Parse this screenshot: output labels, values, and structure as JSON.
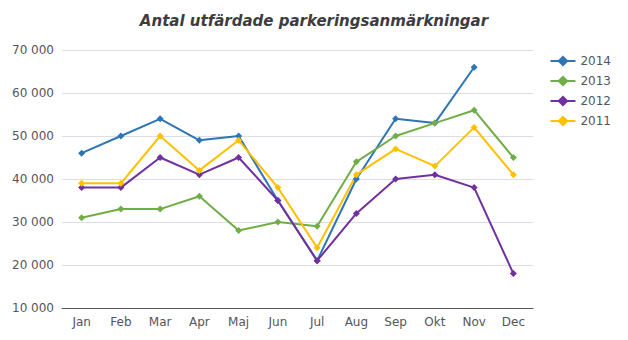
{
  "chart_data": {
    "type": "line",
    "title": "Antal utfärdade parkeringsanmärkningar",
    "categories": [
      "Jan",
      "Feb",
      "Mar",
      "Apr",
      "Maj",
      "Jun",
      "Jul",
      "Aug",
      "Sep",
      "Okt",
      "Nov",
      "Dec"
    ],
    "series": [
      {
        "name": "2014",
        "color": "#2E75B6",
        "values": [
          46000,
          50000,
          54000,
          49000,
          50000,
          35000,
          21000,
          40000,
          54000,
          53000,
          66000,
          null
        ]
      },
      {
        "name": "2013",
        "color": "#70AD47",
        "values": [
          31000,
          33000,
          33000,
          36000,
          28000,
          30000,
          29000,
          44000,
          50000,
          53000,
          56000,
          45000
        ]
      },
      {
        "name": "2012",
        "color": "#7030A0",
        "values": [
          38000,
          38000,
          45000,
          41000,
          45000,
          35000,
          21000,
          32000,
          40000,
          41000,
          38000,
          18000
        ]
      },
      {
        "name": "2011",
        "color": "#FFC000",
        "values": [
          39000,
          39000,
          50000,
          42000,
          49000,
          38000,
          24000,
          41000,
          47000,
          43000,
          52000,
          41000
        ]
      }
    ],
    "ylim": [
      10000,
      70000
    ],
    "yticks": [
      {
        "value": 10000,
        "label": "10 000"
      },
      {
        "value": 20000,
        "label": "20 000"
      },
      {
        "value": 30000,
        "label": "30 000"
      },
      {
        "value": 40000,
        "label": "40 000"
      },
      {
        "value": 50000,
        "label": "50 000"
      },
      {
        "value": 60000,
        "label": "60 000"
      },
      {
        "value": 70000,
        "label": "70 000"
      }
    ],
    "grid": true,
    "legend": "right",
    "marker": "diamond"
  }
}
